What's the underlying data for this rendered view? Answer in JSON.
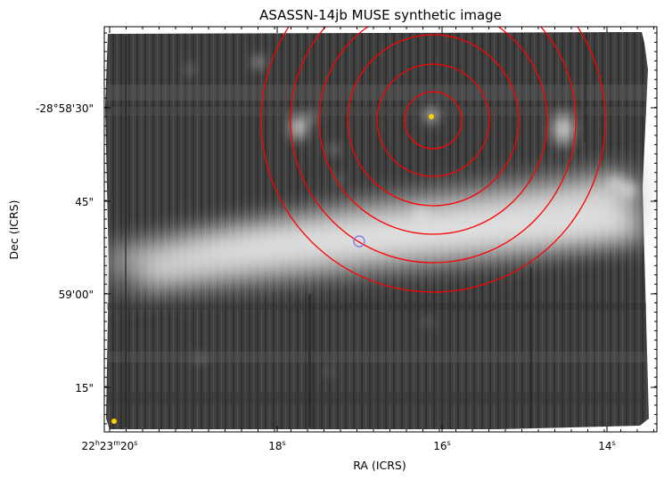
{
  "title": "ASASSN-14jb MUSE synthetic image",
  "xlabel": "RA (ICRS)",
  "ylabel": "Dec (ICRS)",
  "x_ticks": [
    {
      "label": "22h23m20s",
      "parts": [
        "22",
        "h",
        "23",
        "m",
        "20",
        "s"
      ]
    },
    {
      "label": "18s",
      "parts": [
        "18",
        "s"
      ]
    },
    {
      "label": "16s",
      "parts": [
        "16",
        "s"
      ]
    },
    {
      "label": "14s",
      "parts": [
        "14",
        "s"
      ]
    }
  ],
  "y_ticks": [
    {
      "label": "-28°58'30\""
    },
    {
      "label": "45\""
    },
    {
      "label": "59'00\""
    },
    {
      "label": "15\""
    }
  ],
  "colors": {
    "circles": "#ff0000",
    "marker_ring": "#6f6fe6",
    "source_dot": "#ffd000",
    "frame": "#000000"
  },
  "annotations": {
    "concentric_circles": 6,
    "center_marker": "yellow-dot",
    "secondary_marker": "blue-ring",
    "corner_marker": "yellow-dot"
  }
}
